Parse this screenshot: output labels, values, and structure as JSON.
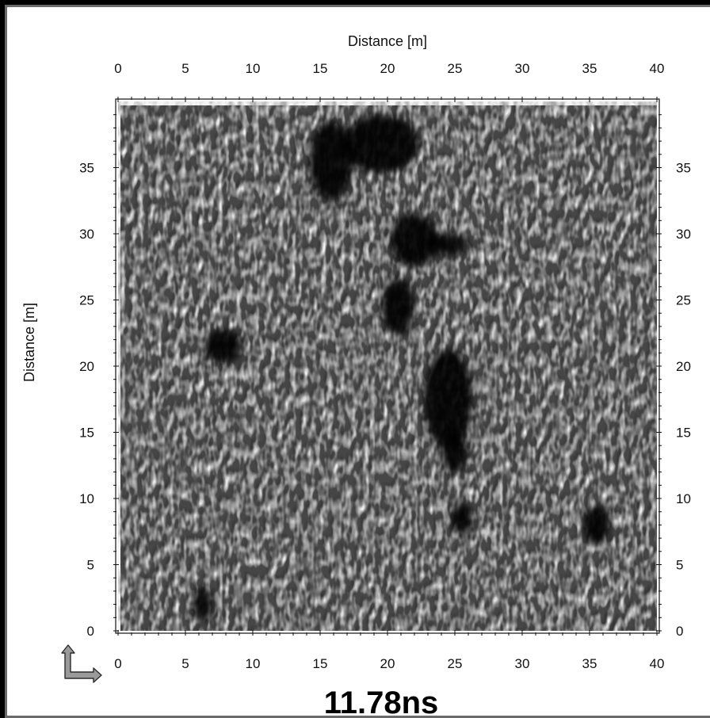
{
  "chart_data": {
    "type": "heatmap",
    "title": "",
    "xlabel": "Distance [m]",
    "ylabel": "Distance [m]",
    "xlim": [
      0,
      40
    ],
    "ylim": [
      0,
      40
    ],
    "x_ticks": [
      "0",
      "5",
      "10",
      "15",
      "20",
      "25",
      "30",
      "35",
      "40"
    ],
    "y_ticks": [
      "0",
      "5",
      "10",
      "15",
      "20",
      "25",
      "30",
      "35"
    ],
    "colormap": "grayscale",
    "dark_anomalies": [
      {
        "x": 15.8,
        "y": 35.5,
        "rx": 1.6,
        "ry": 3.0
      },
      {
        "x": 19.5,
        "y": 36.8,
        "rx": 2.8,
        "ry": 2.2
      },
      {
        "x": 22.0,
        "y": 29.5,
        "rx": 1.8,
        "ry": 2.0
      },
      {
        "x": 24.5,
        "y": 29.2,
        "rx": 1.6,
        "ry": 0.8
      },
      {
        "x": 20.8,
        "y": 24.5,
        "rx": 1.2,
        "ry": 2.2
      },
      {
        "x": 24.5,
        "y": 17.5,
        "rx": 1.8,
        "ry": 3.8
      },
      {
        "x": 25.0,
        "y": 13.5,
        "rx": 0.9,
        "ry": 1.6
      },
      {
        "x": 7.8,
        "y": 21.5,
        "rx": 1.4,
        "ry": 1.3
      },
      {
        "x": 6.3,
        "y": 2.0,
        "rx": 0.7,
        "ry": 1.3
      },
      {
        "x": 25.5,
        "y": 8.5,
        "rx": 0.8,
        "ry": 1.2
      },
      {
        "x": 35.5,
        "y": 8.0,
        "rx": 1.0,
        "ry": 1.5
      }
    ]
  },
  "timestamp": "11.78ns",
  "icons": {
    "axes_orientation": "axes-orientation-arrow-icon"
  },
  "colors": {
    "background": "#000000",
    "frame": "#ffffff",
    "frame_border": "#6a6a6a",
    "text": "#111111"
  }
}
